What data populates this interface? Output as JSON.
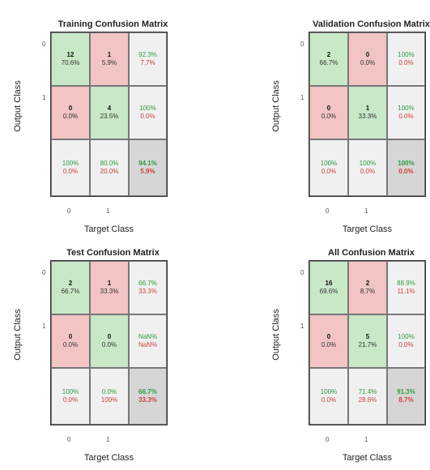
{
  "chart_data": [
    {
      "type": "heatmap",
      "title": "Training Confusion Matrix",
      "xlabel": "Target Class",
      "ylabel": "Output Class",
      "classes": [
        "0",
        "1"
      ],
      "cells": [
        [
          {
            "count": "12",
            "pct": "70.6%"
          },
          {
            "count": "1",
            "pct": "5.9%"
          }
        ],
        [
          {
            "count": "0",
            "pct": "0.0%"
          },
          {
            "count": "4",
            "pct": "23.5%"
          }
        ]
      ],
      "row_summary": [
        [
          "92.3%",
          "7.7%"
        ],
        [
          "100%",
          "0.0%"
        ]
      ],
      "col_summary": [
        [
          "100%",
          "0.0%"
        ],
        [
          "80.0%",
          "20.0%"
        ]
      ],
      "overall": [
        "94.1%",
        "5.9%"
      ]
    },
    {
      "type": "heatmap",
      "title": "Validation Confusion Matrix",
      "xlabel": "Target Class",
      "ylabel": "Output Class",
      "classes": [
        "0",
        "1"
      ],
      "cells": [
        [
          {
            "count": "2",
            "pct": "66.7%"
          },
          {
            "count": "0",
            "pct": "0.0%"
          }
        ],
        [
          {
            "count": "0",
            "pct": "0.0%"
          },
          {
            "count": "1",
            "pct": "33.3%"
          }
        ]
      ],
      "row_summary": [
        [
          "100%",
          "0.0%"
        ],
        [
          "100%",
          "0.0%"
        ]
      ],
      "col_summary": [
        [
          "100%",
          "0.0%"
        ],
        [
          "100%",
          "0.0%"
        ]
      ],
      "overall": [
        "100%",
        "0.0%"
      ]
    },
    {
      "type": "heatmap",
      "title": "Test Confusion Matrix",
      "xlabel": "Target Class",
      "ylabel": "Output Class",
      "classes": [
        "0",
        "1"
      ],
      "cells": [
        [
          {
            "count": "2",
            "pct": "66.7%"
          },
          {
            "count": "1",
            "pct": "33.3%"
          }
        ],
        [
          {
            "count": "0",
            "pct": "0.0%"
          },
          {
            "count": "0",
            "pct": "0.0%"
          }
        ]
      ],
      "row_summary": [
        [
          "66.7%",
          "33.3%"
        ],
        [
          "NaN%",
          "NaN%"
        ]
      ],
      "col_summary": [
        [
          "100%",
          "0.0%"
        ],
        [
          "0.0%",
          "100%"
        ]
      ],
      "overall": [
        "66.7%",
        "33.3%"
      ]
    },
    {
      "type": "heatmap",
      "title": "All Confusion Matrix",
      "xlabel": "Target Class",
      "ylabel": "Output Class",
      "classes": [
        "0",
        "1"
      ],
      "cells": [
        [
          {
            "count": "16",
            "pct": "69.6%"
          },
          {
            "count": "2",
            "pct": "8.7%"
          }
        ],
        [
          {
            "count": "0",
            "pct": "0.0%"
          },
          {
            "count": "5",
            "pct": "21.7%"
          }
        ]
      ],
      "row_summary": [
        [
          "88.9%",
          "11.1%"
        ],
        [
          "100%",
          "0.0%"
        ]
      ],
      "col_summary": [
        [
          "100%",
          "0.0%"
        ],
        [
          "71.4%",
          "28.6%"
        ]
      ],
      "overall": [
        "91.3%",
        "8.7%"
      ]
    }
  ],
  "colors": {
    "correct_cell": "#c8e8c8",
    "wrong_cell": "#f2c4c4",
    "summary_cell": "#f0f0f0",
    "overall_cell": "#d6d6d6",
    "good_text": "#2e9c3e",
    "bad_text": "#d04040"
  }
}
